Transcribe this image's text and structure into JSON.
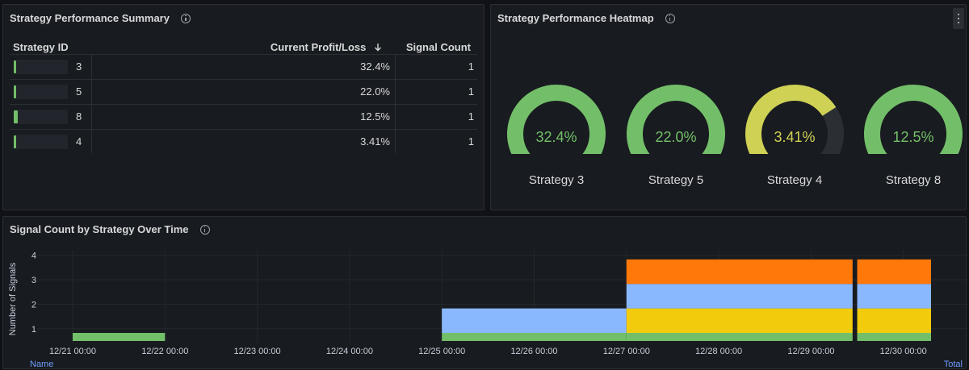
{
  "summary_panel": {
    "title": "Strategy Performance Summary",
    "columns": {
      "strategy_id": "Strategy ID",
      "profit": "Current Profit/Loss",
      "signals": "Signal Count"
    },
    "sort_icon": "arrow-down-icon",
    "rows": [
      {
        "id": "3",
        "profit": "32.4%",
        "signals": "1",
        "bar_fraction": 0.05
      },
      {
        "id": "5",
        "profit": "22.0%",
        "signals": "1",
        "bar_fraction": 0.05
      },
      {
        "id": "8",
        "profit": "12.5%",
        "signals": "1",
        "bar_fraction": 0.08
      },
      {
        "id": "4",
        "profit": "3.41%",
        "signals": "1",
        "bar_fraction": 0.05
      }
    ]
  },
  "heatmap_panel": {
    "title": "Strategy Performance Heatmap",
    "gauges": [
      {
        "value_text": "32.4%",
        "fraction": 1.0,
        "color": "#73bf69",
        "label": "Strategy 3"
      },
      {
        "value_text": "22.0%",
        "fraction": 1.0,
        "color": "#73bf69",
        "label": "Strategy 5"
      },
      {
        "value_text": "3.41%",
        "fraction": 0.72,
        "color": "#cfd155",
        "label": "Strategy 4"
      },
      {
        "value_text": "12.5%",
        "fraction": 1.0,
        "color": "#73bf69",
        "label": "Strategy 8"
      }
    ],
    "track_color": "#2b2e33"
  },
  "timeseries_panel": {
    "title": "Signal Count by Strategy Over Time",
    "legend_left": "Name",
    "legend_right": "Total"
  },
  "chart_data": {
    "type": "area",
    "title": "Signal Count by Strategy Over Time",
    "ylabel": "Number of Signals",
    "xlabel": "",
    "ylim": [
      1,
      4
    ],
    "y_ticks": [
      1,
      2,
      3,
      4
    ],
    "x_ticks": [
      "12/21 00:00",
      "12/22 00:00",
      "12/23 00:00",
      "12/24 00:00",
      "12/25 00:00",
      "12/26 00:00",
      "12/27 00:00",
      "12/28 00:00",
      "12/29 00:00",
      "12/30 00:00"
    ],
    "stacked": true,
    "segments": [
      {
        "start": 0.0,
        "end": 1.0,
        "layers": [
          {
            "color": "#73bf69",
            "value": 1
          }
        ]
      },
      {
        "start": 4.0,
        "end": 6.0,
        "layers": [
          {
            "color": "#73bf69",
            "value": 1
          },
          {
            "color": "#8ab8ff",
            "value": 1
          }
        ]
      },
      {
        "start": 6.0,
        "end": 8.45,
        "layers": [
          {
            "color": "#73bf69",
            "value": 1
          },
          {
            "color": "#f2cc0c",
            "value": 1
          },
          {
            "color": "#8ab8ff",
            "value": 1
          },
          {
            "color": "#ff780a",
            "value": 1
          }
        ]
      },
      {
        "start": 8.5,
        "end": 9.3,
        "layers": [
          {
            "color": "#73bf69",
            "value": 1
          },
          {
            "color": "#f2cc0c",
            "value": 1
          },
          {
            "color": "#8ab8ff",
            "value": 1
          },
          {
            "color": "#ff780a",
            "value": 1
          }
        ]
      }
    ]
  }
}
